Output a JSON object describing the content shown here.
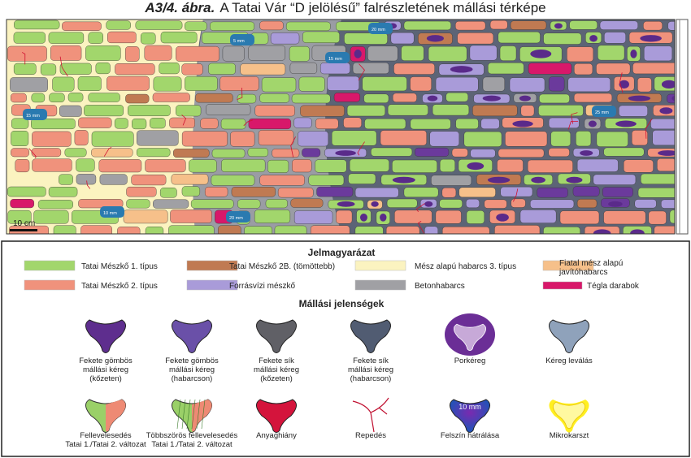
{
  "title": {
    "figure": "A3/4. ábra.",
    "text": "A Tatai Vár “D jelölésű” falrészletének mállási térképe"
  },
  "map": {
    "scale": "10 cm",
    "measurements": [
      "20 mm",
      "15 mm",
      "15 mm",
      "25 mm",
      "10 mm",
      "5 mm",
      "20 mm"
    ]
  },
  "legend": {
    "title": "Jelmagyarázat",
    "materials": [
      {
        "lines": [
          "Tatai Mészkő 1. típus"
        ]
      },
      {
        "lines": [
          "Tatai Mészkő 2B. (tömöttebb)"
        ]
      },
      {
        "lines": [
          "Mész alapú habarcs 3. típus"
        ]
      },
      {
        "lines": [
          "Fiatal mész alapú",
          "javítóhabarcs"
        ]
      },
      {
        "lines": [
          "Tatai Mészkő 2. típus"
        ]
      },
      {
        "lines": [
          "Forrásvízi mészkő"
        ]
      },
      {
        "lines": [
          "Betonhabarcs"
        ]
      },
      {
        "lines": [
          "Tégla darabok"
        ]
      }
    ],
    "weathering_title": "Mállási jelenségek",
    "phenomena": [
      {
        "lines": [
          "Fekete gömbös",
          "mállási kéreg",
          "(kőzeten)"
        ]
      },
      {
        "lines": [
          "Fekete gömbös",
          "mállási kéreg",
          "(habarcson)"
        ]
      },
      {
        "lines": [
          "Fekete sík",
          "mállási kéreg",
          "(kőzeten)"
        ]
      },
      {
        "lines": [
          "Fekete sík",
          "mállási kéreg",
          "(habarcson)"
        ]
      },
      {
        "lines": [
          "Porkéreg"
        ]
      },
      {
        "lines": [
          "Kéreg leválás"
        ]
      },
      {
        "lines": [
          "Fellevelesedés",
          "Tatai 1./Tatai 2. változat"
        ]
      },
      {
        "lines": [
          "Többszörös  fellevelesedés",
          "Tatai 1./Tatai 2. változat"
        ]
      },
      {
        "lines": [
          "Anyaghiány"
        ]
      },
      {
        "lines": [
          "Repedés"
        ]
      },
      {
        "lines": [
          "Felszín hátrálása"
        ],
        "icon_text": "10 mm"
      },
      {
        "lines": [
          "Mikrokarszt"
        ]
      }
    ]
  }
}
